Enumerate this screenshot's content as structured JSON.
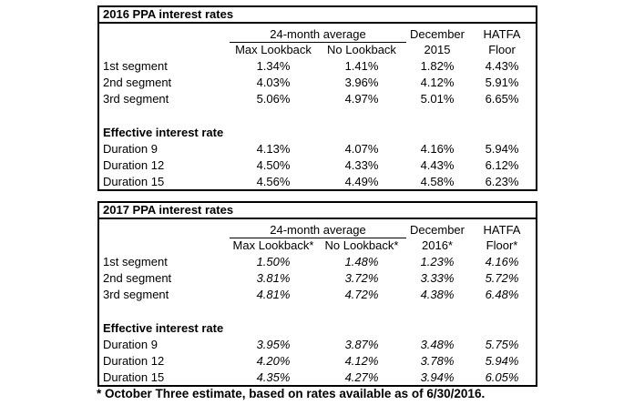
{
  "footnote": "* October Three estimate, based on rates available as of 6/30/2016.",
  "tables": [
    {
      "title": "2016 PPA interest rates",
      "header": {
        "group": "24-month average",
        "period_line1": "December",
        "floor_line1": "HATFA",
        "sub": [
          "Max Lookback",
          "No Lookback",
          "2015",
          "Floor"
        ]
      },
      "segments": [
        {
          "label": "1st segment",
          "values": [
            "1.34%",
            "1.41%",
            "1.82%",
            "4.43%"
          ]
        },
        {
          "label": "2nd segment",
          "values": [
            "4.03%",
            "3.96%",
            "4.12%",
            "5.91%"
          ]
        },
        {
          "label": "3rd segment",
          "values": [
            "5.06%",
            "4.97%",
            "5.01%",
            "6.65%"
          ]
        }
      ],
      "section_label": "Effective interest rate",
      "durations": [
        {
          "label": "Duration 9",
          "values": [
            "4.13%",
            "4.07%",
            "4.16%",
            "5.94%"
          ]
        },
        {
          "label": "Duration 12",
          "values": [
            "4.50%",
            "4.33%",
            "4.43%",
            "6.12%"
          ]
        },
        {
          "label": "Duration 15",
          "values": [
            "4.56%",
            "4.49%",
            "4.58%",
            "6.23%"
          ]
        }
      ]
    },
    {
      "title": "2017 PPA interest rates",
      "header": {
        "group": "24-month average",
        "period_line1": "December",
        "floor_line1": "HATFA",
        "sub": [
          "Max Lookback*",
          "No Lookback*",
          "2016*",
          "Floor*"
        ]
      },
      "segments": [
        {
          "label": "1st segment",
          "values": [
            "1.50%",
            "1.48%",
            "1.23%",
            "4.16%"
          ]
        },
        {
          "label": "2nd segment",
          "values": [
            "3.81%",
            "3.72%",
            "3.33%",
            "5.72%"
          ]
        },
        {
          "label": "3rd segment",
          "values": [
            "4.81%",
            "4.72%",
            "4.38%",
            "6.48%"
          ]
        }
      ],
      "section_label": "Effective interest rate",
      "durations": [
        {
          "label": "Duration 9",
          "values": [
            "3.95%",
            "3.87%",
            "3.48%",
            "5.75%"
          ]
        },
        {
          "label": "Duration 12",
          "values": [
            "4.20%",
            "4.12%",
            "3.78%",
            "5.94%"
          ]
        },
        {
          "label": "Duration 15",
          "values": [
            "4.35%",
            "4.27%",
            "3.94%",
            "6.05%"
          ]
        }
      ]
    }
  ]
}
